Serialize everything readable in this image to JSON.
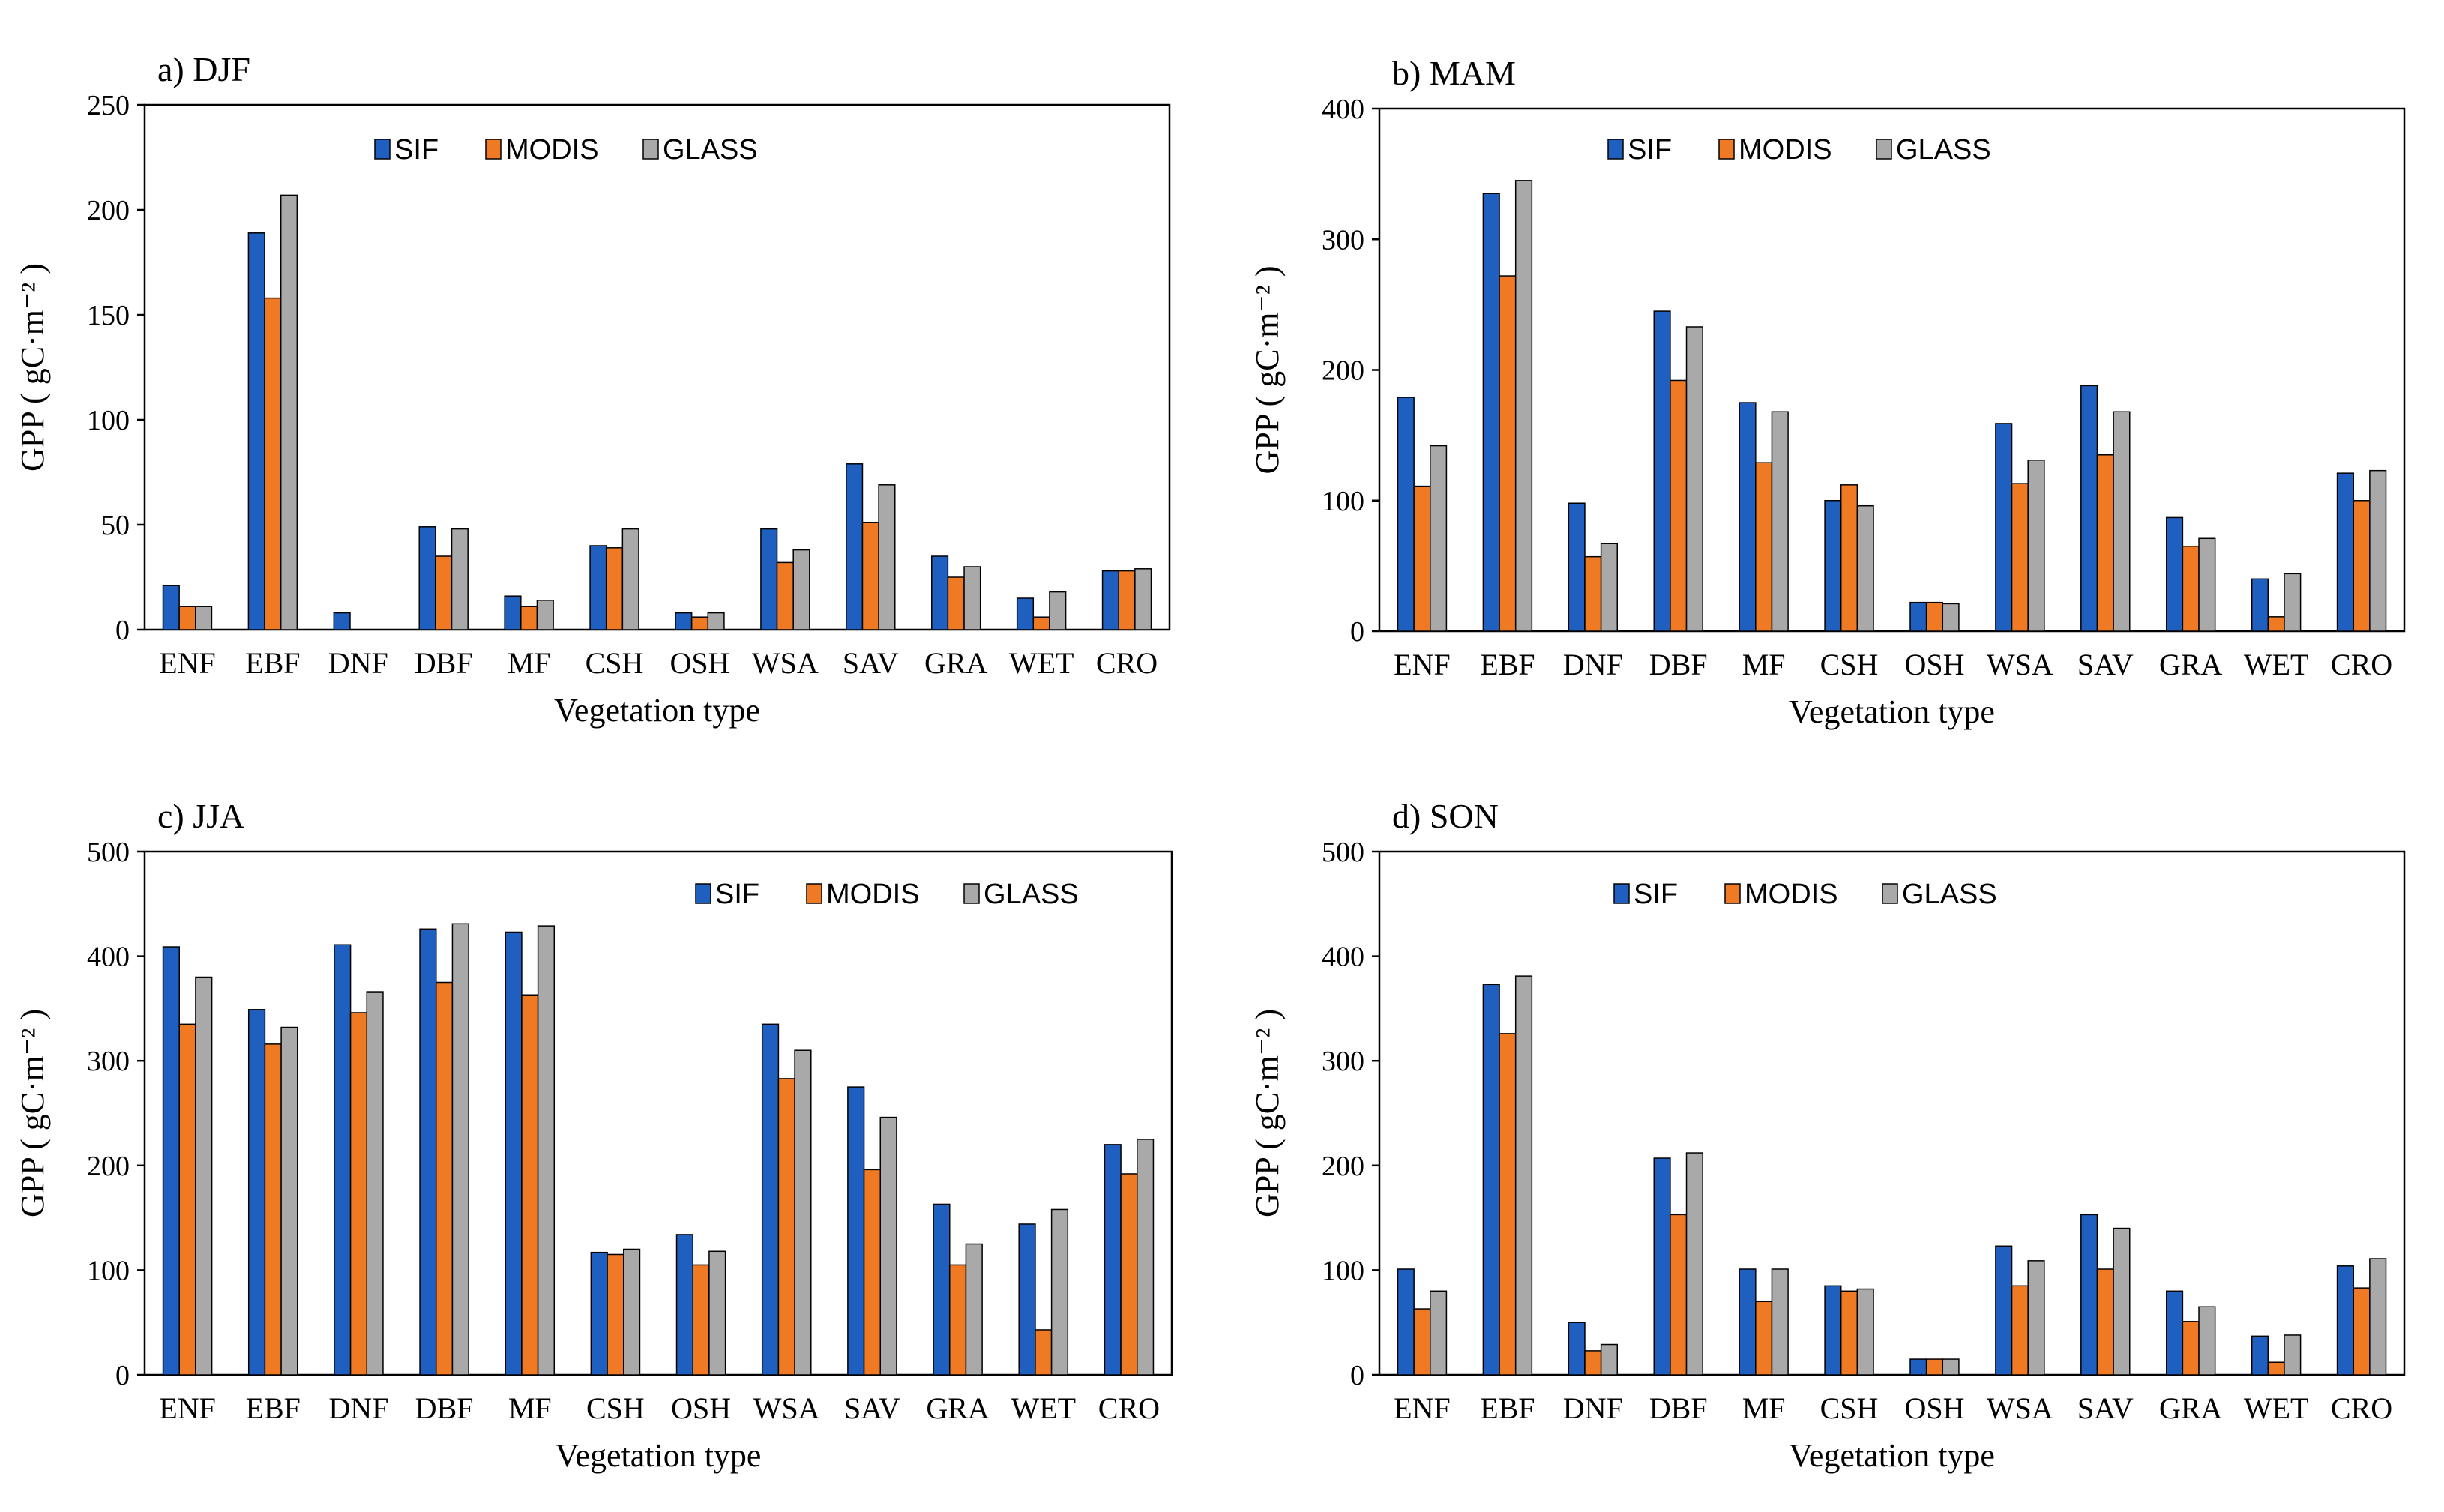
{
  "figure": {
    "series_colors": {
      "SIF": "#1f5fbf",
      "MODIS": "#f07a24",
      "GLASS": "#a9a9a9"
    }
  },
  "chart_data": [
    {
      "id": "djf",
      "type": "bar",
      "title": "a) DJF",
      "xlabel": "Vegetation type",
      "ylabel": "GPP ( gC·m⁻² )",
      "ylim": [
        0,
        250
      ],
      "yticks": [
        0,
        50,
        100,
        150,
        200,
        250
      ],
      "legend": "top-center",
      "categories": [
        "ENF",
        "EBF",
        "DNF",
        "DBF",
        "MF",
        "CSH",
        "OSH",
        "WSA",
        "SAV",
        "GRA",
        "WET",
        "CRO"
      ],
      "series": [
        {
          "name": "SIF",
          "values": [
            21,
            189,
            8,
            49,
            16,
            40,
            8,
            48,
            79,
            35,
            15,
            28
          ]
        },
        {
          "name": "MODIS",
          "values": [
            11,
            158,
            0,
            35,
            11,
            39,
            6,
            32,
            51,
            25,
            6,
            28
          ]
        },
        {
          "name": "GLASS",
          "values": [
            11,
            207,
            0,
            48,
            14,
            48,
            8,
            38,
            69,
            30,
            18,
            29
          ]
        }
      ]
    },
    {
      "id": "mam",
      "type": "bar",
      "title": "b) MAM",
      "xlabel": "Vegetation type",
      "ylabel": "GPP ( gC·m⁻² )",
      "ylim": [
        0,
        400
      ],
      "yticks": [
        0,
        100,
        200,
        300,
        400
      ],
      "legend": "top-center",
      "categories": [
        "ENF",
        "EBF",
        "DNF",
        "DBF",
        "MF",
        "CSH",
        "OSH",
        "WSA",
        "SAV",
        "GRA",
        "WET",
        "CRO"
      ],
      "series": [
        {
          "name": "SIF",
          "values": [
            179,
            335,
            98,
            245,
            175,
            100,
            22,
            159,
            188,
            87,
            40,
            121
          ]
        },
        {
          "name": "MODIS",
          "values": [
            111,
            272,
            57,
            192,
            129,
            112,
            22,
            113,
            135,
            65,
            11,
            100
          ]
        },
        {
          "name": "GLASS",
          "values": [
            142,
            345,
            67,
            233,
            168,
            96,
            21,
            131,
            168,
            71,
            44,
            123
          ]
        }
      ]
    },
    {
      "id": "jja",
      "type": "bar",
      "title": "c) JJA",
      "xlabel": "Vegetation type",
      "ylabel": "GPP ( gC·m⁻² )",
      "ylim": [
        0,
        500
      ],
      "yticks": [
        0,
        100,
        200,
        300,
        400,
        500
      ],
      "legend": "top-right",
      "categories": [
        "ENF",
        "EBF",
        "DNF",
        "DBF",
        "MF",
        "CSH",
        "OSH",
        "WSA",
        "SAV",
        "GRA",
        "WET",
        "CRO"
      ],
      "series": [
        {
          "name": "SIF",
          "values": [
            409,
            349,
            411,
            426,
            423,
            117,
            134,
            335,
            275,
            163,
            144,
            220
          ]
        },
        {
          "name": "MODIS",
          "values": [
            335,
            316,
            346,
            375,
            363,
            115,
            105,
            283,
            196,
            105,
            43,
            192
          ]
        },
        {
          "name": "GLASS",
          "values": [
            380,
            332,
            366,
            431,
            429,
            120,
            118,
            310,
            246,
            125,
            158,
            225
          ]
        }
      ]
    },
    {
      "id": "son",
      "type": "bar",
      "title": "d) SON",
      "xlabel": "Vegetation type",
      "ylabel": "GPP ( gC·m⁻² )",
      "ylim": [
        0,
        500
      ],
      "yticks": [
        0,
        100,
        200,
        300,
        400,
        500
      ],
      "legend": "top-center",
      "categories": [
        "ENF",
        "EBF",
        "DNF",
        "DBF",
        "MF",
        "CSH",
        "OSH",
        "WSA",
        "SAV",
        "GRA",
        "WET",
        "CRO"
      ],
      "series": [
        {
          "name": "SIF",
          "values": [
            101,
            373,
            50,
            207,
            101,
            85,
            15,
            123,
            153,
            80,
            37,
            104
          ]
        },
        {
          "name": "MODIS",
          "values": [
            63,
            326,
            23,
            153,
            70,
            80,
            15,
            85,
            101,
            51,
            12,
            83
          ]
        },
        {
          "name": "GLASS",
          "values": [
            80,
            381,
            29,
            212,
            101,
            82,
            15,
            109,
            140,
            65,
            38,
            111
          ]
        }
      ]
    }
  ]
}
